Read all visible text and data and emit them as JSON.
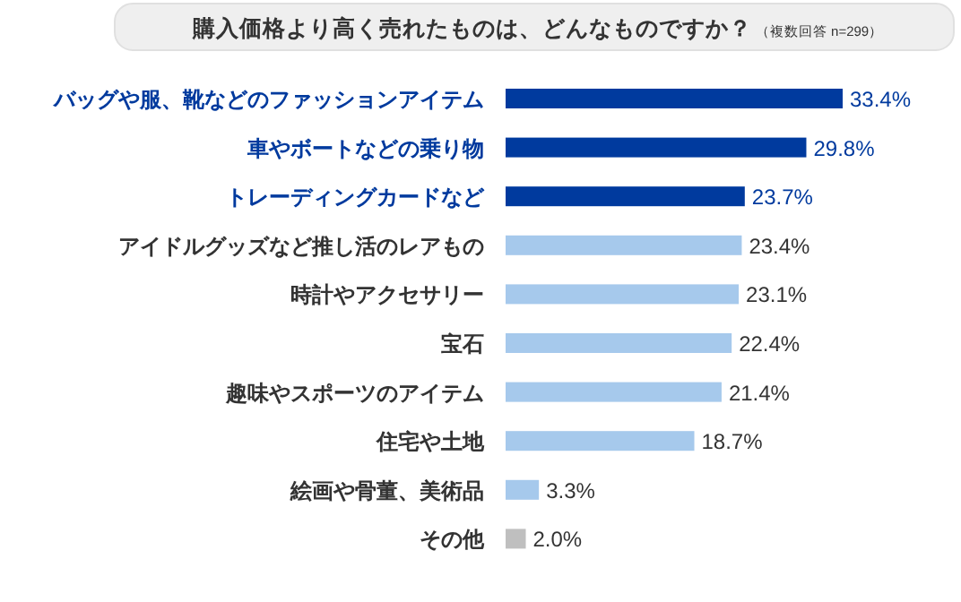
{
  "chart_data": {
    "type": "bar",
    "orientation": "horizontal",
    "title": "購入価格より高く売れたものは、どんなものですか？",
    "subtitle": "（複数回答 n=299）",
    "categories": [
      "バッグや服、靴などのファッションアイテム",
      "車やボートなどの乗り物",
      "トレーディングカードなど",
      "アイドルグッズなど推し活のレアもの",
      "時計やアクセサリー",
      "宝石",
      "趣味やスポーツのアイテム",
      "住宅や土地",
      "絵画や骨董、美術品",
      "その他"
    ],
    "values": [
      33.4,
      29.8,
      23.7,
      23.4,
      23.1,
      22.4,
      21.4,
      18.7,
      3.3,
      2.0
    ],
    "colors": [
      "#003a9e",
      "#003a9e",
      "#003a9e",
      "#a6c9ec",
      "#a6c9ec",
      "#a6c9ec",
      "#a6c9ec",
      "#a6c9ec",
      "#a6c9ec",
      "#bfbfbf"
    ],
    "value_labels": [
      "33.4%",
      "29.8%",
      "23.7%",
      "23.4%",
      "23.1%",
      "22.4%",
      "21.4%",
      "18.7%",
      "3.3%",
      "2.0%"
    ]
  }
}
